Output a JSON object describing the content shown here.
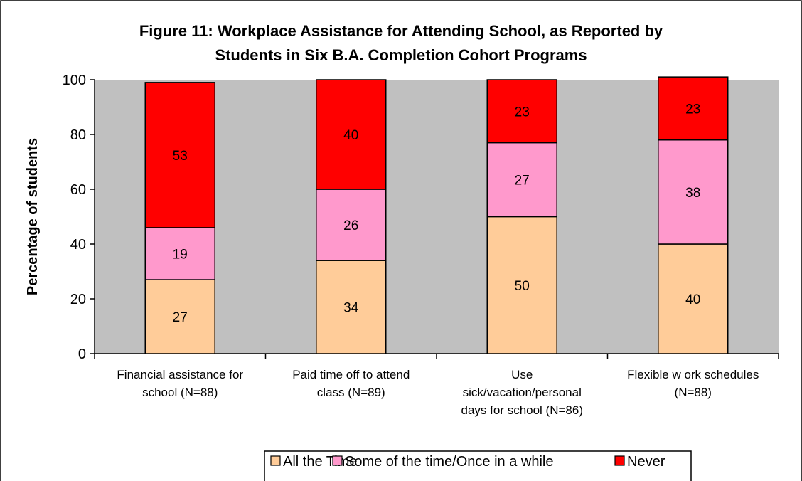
{
  "chart_data": {
    "type": "bar",
    "stacked": true,
    "title": "Figure 11: Workplace Assistance for Attending School, as Reported by Students in Six B.A. Completion Cohort Programs",
    "title_lines": [
      "Figure 11: Workplace Assistance for Attending School, as Reported by",
      "Students in Six B.A. Completion Cohort Programs"
    ],
    "xlabel": "",
    "ylabel": "Percentage of students",
    "ylim": [
      0,
      100
    ],
    "yticks": [
      0,
      20,
      40,
      60,
      80,
      100
    ],
    "grid": false,
    "legend_position": "bottom",
    "categories": [
      "Financial assistance for school (N=88)",
      "Paid time off to attend class (N=89)",
      "Use sick/vacation/personal days for school (N=86)",
      "Flexible w ork schedules (N=88)"
    ],
    "category_lines": [
      [
        "Financial assistance for",
        "school (N=88)"
      ],
      [
        "Paid time off to attend",
        "class (N=89)"
      ],
      [
        "Use",
        "sick/vacation/personal",
        "days for school (N=86)"
      ],
      [
        "Flexible w ork schedules",
        "(N=88)"
      ]
    ],
    "series": [
      {
        "name": "All the Time",
        "color": "#FFCC99",
        "values": [
          27,
          34,
          50,
          40
        ]
      },
      {
        "name": "Some of the time/Once in a while",
        "color": "#FF99CC",
        "values": [
          19,
          26,
          27,
          38
        ]
      },
      {
        "name": "Never",
        "color": "#FF0000",
        "values": [
          53,
          40,
          23,
          23
        ]
      }
    ],
    "plot_background": "#C0C0C0"
  }
}
